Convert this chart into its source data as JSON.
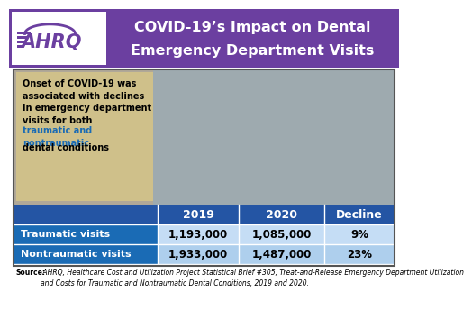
{
  "title_line1": "COVID-19’s Impact on Dental",
  "title_line2": "Emergency Department Visits",
  "title_bg_color": "#6b3fa0",
  "ahrq_purple": "#6b3fa0",
  "ahrq_logo_bg": "#ffffff",
  "col_headers": [
    "2019",
    "2020",
    "Decline"
  ],
  "rows": [
    {
      "label": "Traumatic visits",
      "val2019": "1,193,000",
      "val2020": "1,085,000",
      "decline": "9%"
    },
    {
      "label": "Nontraumatic visits",
      "val2019": "1,933,000",
      "val2020": "1,487,000",
      "decline": "23%"
    }
  ],
  "callout_bg": "#cfc08a",
  "callout_text_black1": "Onset of COVID-19 was\nassociated with declines\nin emergency department\nvisits for both",
  "callout_text_blue": "traumatic and\nnontraumatic",
  "callout_text_black2": "dental conditions",
  "callout_blue_color": "#1a6bb5",
  "source_bold": "Source:",
  "source_rest": " AHRQ, Healthcare Cost and Utilization Project Statistical Brief #305, Treat-and-Release Emergency Department Utilization\nand Costs for Traumatic and Nontraumatic Dental Conditions, 2019 and 2020.",
  "outer_border_color": "#555555",
  "table_header_bg": "#2455a4",
  "table_header_text": "#ffffff",
  "row_label_bg": "#1a6bb5",
  "row_data_bg": "#c5ddf5",
  "row_data_bg2": "#aecfed",
  "photo_bg": "#9aaa99",
  "photo_right": "#8899aa",
  "white": "#ffffff",
  "black": "#000000"
}
